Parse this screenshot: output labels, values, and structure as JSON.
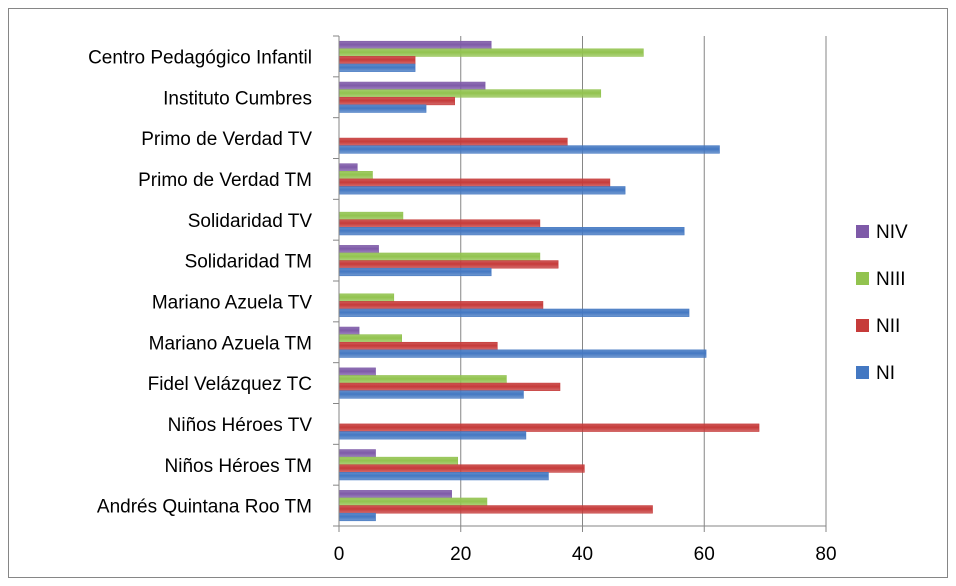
{
  "chart_data": {
    "type": "bar",
    "orientation": "horizontal",
    "title": "",
    "xlabel": "",
    "ylabel": "",
    "xlim": [
      0,
      80
    ],
    "x_ticks": [
      "0",
      "20",
      "40",
      "60",
      "80"
    ],
    "grid": true,
    "legend_position": "right",
    "categories": [
      "Centro Pedagógico Infantil",
      "Instituto Cumbres",
      "Primo de Verdad TV",
      "Primo de Verdad TM",
      "Solidaridad TV",
      "Solidaridad TM",
      "Mariano Azuela TV",
      "Mariano Azuela TM",
      "Fidel Velázquez TC",
      "Niños Héroes TV",
      "Niños Héroes TM",
      "Andrés Quintana Roo TM"
    ],
    "series": [
      {
        "name": "NIV",
        "color": "#7E5AA8",
        "values": [
          25,
          24,
          0,
          3,
          0,
          6.5,
          0,
          3.3,
          6,
          0,
          6,
          18.5
        ]
      },
      {
        "name": "NIII",
        "color": "#92C34F",
        "values": [
          50,
          43,
          0,
          5.5,
          10.5,
          33,
          9,
          10.3,
          27.5,
          0,
          19.5,
          24.3
        ]
      },
      {
        "name": "NII",
        "color": "#C63B3A",
        "values": [
          12.5,
          19,
          37.5,
          44.5,
          33,
          36,
          33.5,
          26,
          36.3,
          69,
          40.3,
          51.5
        ]
      },
      {
        "name": "NI",
        "color": "#4478C2",
        "values": [
          12.5,
          14.3,
          62.5,
          47,
          56.7,
          25,
          57.5,
          60.3,
          30.3,
          30.7,
          34.4,
          6
        ]
      }
    ]
  }
}
